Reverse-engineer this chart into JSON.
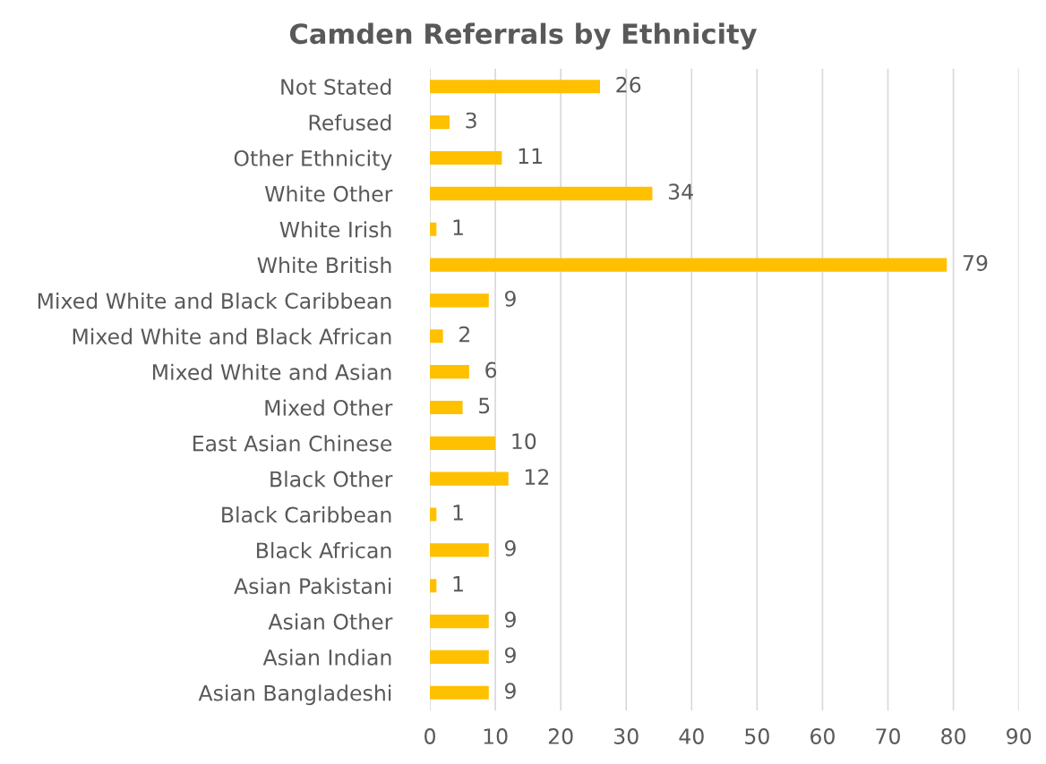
{
  "chart_data": {
    "type": "bar",
    "orientation": "horizontal",
    "title": "Camden Referrals by Ethnicity",
    "categories": [
      "Not Stated",
      "Refused",
      "Other Ethnicity",
      "White Other",
      "White Irish",
      "White British",
      "Mixed White and Black Caribbean",
      "Mixed White and Black African",
      "Mixed White and Asian",
      "Mixed Other",
      "East Asian Chinese",
      "Black Other",
      "Black Caribbean",
      "Black African",
      "Asian Pakistani",
      "Asian Other",
      "Asian Indian",
      "Asian Bangladeshi"
    ],
    "values": [
      26,
      3,
      11,
      34,
      1,
      79,
      9,
      2,
      6,
      5,
      10,
      12,
      1,
      9,
      1,
      9,
      9,
      9
    ],
    "color": "#ffc000",
    "xlim": [
      0,
      90
    ],
    "xticks": [
      0,
      10,
      20,
      30,
      40,
      50,
      60,
      70,
      80,
      90
    ],
    "grid": "x",
    "data_labels": true,
    "legend": false
  }
}
